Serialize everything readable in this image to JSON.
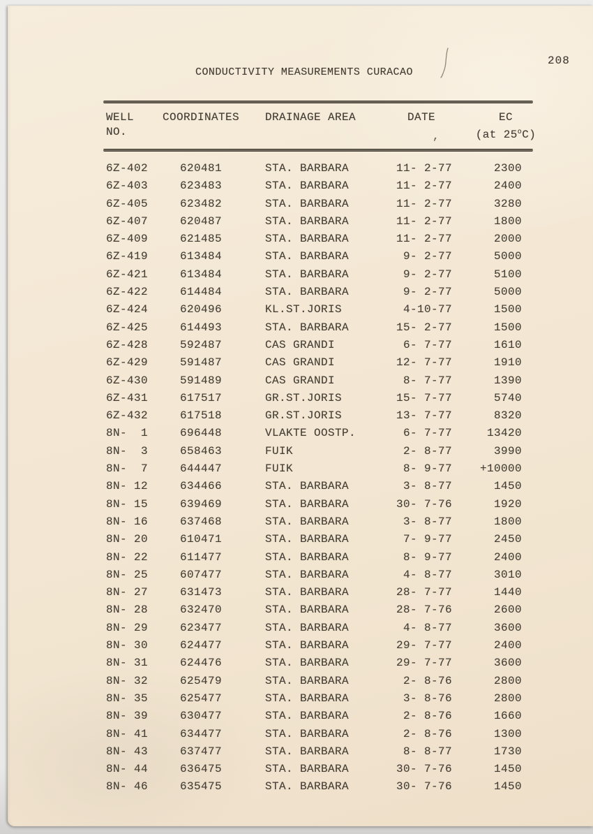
{
  "page": {
    "number": "208",
    "title": "CONDUCTIVITY MEASUREMENTS CURACAO"
  },
  "table": {
    "headers": {
      "well_line1": "WELL",
      "well_line2": "NO.",
      "coordinates": "COORDINATES",
      "drainage": "DRAINAGE AREA",
      "date": "DATE",
      "ec_line1": "EC",
      "ec_line2_pre": "(at 25",
      "ec_line2_sup": "o",
      "ec_line2_post": "C)"
    },
    "rows": [
      {
        "well": "6Z-402",
        "coordinates": "620481",
        "drainage": "STA. BARBARA",
        "date": "11- 2-77",
        "ec": "2300"
      },
      {
        "well": "6Z-403",
        "coordinates": "623483",
        "drainage": "STA. BARBARA",
        "date": "11- 2-77",
        "ec": "2400"
      },
      {
        "well": "6Z-405",
        "coordinates": "623482",
        "drainage": "STA. BARBARA",
        "date": "11- 2-77",
        "ec": "3280"
      },
      {
        "well": "6Z-407",
        "coordinates": "620487",
        "drainage": "STA. BARBARA",
        "date": "11- 2-77",
        "ec": "1800"
      },
      {
        "well": "6Z-409",
        "coordinates": "621485",
        "drainage": "STA. BARBARA",
        "date": "11- 2-77",
        "ec": "2000"
      },
      {
        "well": "6Z-419",
        "coordinates": "613484",
        "drainage": "STA. BARBARA",
        "date": "9- 2-77",
        "ec": "5000"
      },
      {
        "well": "6Z-421",
        "coordinates": "613484",
        "drainage": "STA. BARBARA",
        "date": "9- 2-77",
        "ec": "5100"
      },
      {
        "well": "6Z-422",
        "coordinates": "614484",
        "drainage": "STA. BARBARA",
        "date": "9- 2-77",
        "ec": "5000"
      },
      {
        "well": "6Z-424",
        "coordinates": "620496",
        "drainage": "KL.ST.JORIS",
        "date": "4-10-77",
        "ec": "1500"
      },
      {
        "well": "6Z-425",
        "coordinates": "614493",
        "drainage": "STA. BARBARA",
        "date": "15- 2-77",
        "ec": "1500"
      },
      {
        "well": "6Z-428",
        "coordinates": "592487",
        "drainage": "CAS GRANDI",
        "date": "6- 7-77",
        "ec": "1610"
      },
      {
        "well": "6Z-429",
        "coordinates": "591487",
        "drainage": "CAS GRANDI",
        "date": "12- 7-77",
        "ec": "1910"
      },
      {
        "well": "6Z-430",
        "coordinates": "591489",
        "drainage": "CAS GRANDI",
        "date": "8- 7-77",
        "ec": "1390"
      },
      {
        "well": "6Z-431",
        "coordinates": "617517",
        "drainage": "GR.ST.JORIS",
        "date": "15- 7-77",
        "ec": "5740"
      },
      {
        "well": "6Z-432",
        "coordinates": "617518",
        "drainage": "GR.ST.JORIS",
        "date": "13- 7-77",
        "ec": "8320"
      },
      {
        "well": "8N-  1",
        "coordinates": "696448",
        "drainage": "VLAKTE OOSTP.",
        "date": "6- 7-77",
        "ec": "13420"
      },
      {
        "well": "8N-  3",
        "coordinates": "658463",
        "drainage": "FUIK",
        "date": "2- 8-77",
        "ec": "3990"
      },
      {
        "well": "8N-  7",
        "coordinates": "644447",
        "drainage": "FUIK",
        "date": "8- 9-77",
        "ec": "+10000"
      },
      {
        "well": "8N- 12",
        "coordinates": "634466",
        "drainage": "STA. BARBARA",
        "date": "3- 8-77",
        "ec": "1450"
      },
      {
        "well": "8N- 15",
        "coordinates": "639469",
        "drainage": "STA. BARBARA",
        "date": "30- 7-76",
        "ec": "1920"
      },
      {
        "well": "8N- 16",
        "coordinates": "637468",
        "drainage": "STA. BARBARA",
        "date": "3- 8-77",
        "ec": "1800"
      },
      {
        "well": "8N- 20",
        "coordinates": "610471",
        "drainage": "STA. BARBARA",
        "date": "7- 9-77",
        "ec": "2450"
      },
      {
        "well": "8N- 22",
        "coordinates": "611477",
        "drainage": "STA. BARBARA",
        "date": "8- 9-77",
        "ec": "2400"
      },
      {
        "well": "8N- 25",
        "coordinates": "607477",
        "drainage": "STA. BARBARA",
        "date": "4- 8-77",
        "ec": "3010"
      },
      {
        "well": "8N- 27",
        "coordinates": "631473",
        "drainage": "STA. BARBARA",
        "date": "28- 7-77",
        "ec": "1440"
      },
      {
        "well": "8N- 28",
        "coordinates": "632470",
        "drainage": "STA. BARBARA",
        "date": "28- 7-76",
        "ec": "2600"
      },
      {
        "well": "8N- 29",
        "coordinates": "623477",
        "drainage": "STA. BARBARA",
        "date": "4- 8-77",
        "ec": "3600"
      },
      {
        "well": "8N- 30",
        "coordinates": "624477",
        "drainage": "STA. BARBARA",
        "date": "29- 7-77",
        "ec": "2400"
      },
      {
        "well": "8N- 31",
        "coordinates": "624476",
        "drainage": "STA. BARBARA",
        "date": "29- 7-77",
        "ec": "3600"
      },
      {
        "well": "8N- 32",
        "coordinates": "625479",
        "drainage": "STA. BARBARA",
        "date": "2- 8-76",
        "ec": "2800"
      },
      {
        "well": "8N- 35",
        "coordinates": "625477",
        "drainage": "STA. BARBARA",
        "date": "3- 8-76",
        "ec": "2800"
      },
      {
        "well": "8N- 39",
        "coordinates": "630477",
        "drainage": "STA. BARBARA",
        "date": "2- 8-76",
        "ec": "1660"
      },
      {
        "well": "8N- 41",
        "coordinates": "634477",
        "drainage": "STA. BARBARA",
        "date": "2- 8-76",
        "ec": "1300"
      },
      {
        "well": "8N- 43",
        "coordinates": "637477",
        "drainage": "STA. BARBARA",
        "date": "8- 8-77",
        "ec": "1730"
      },
      {
        "well": "8N- 44",
        "coordinates": "636475",
        "drainage": "STA. BARBARA",
        "date": "30- 7-76",
        "ec": "1450"
      },
      {
        "well": "8N- 46",
        "coordinates": "635475",
        "drainage": "STA. BARBARA",
        "date": "30- 7-76",
        "ec": "1450"
      }
    ]
  },
  "artifacts": {
    "comma_mark": ","
  },
  "colors": {
    "paper": "#f4e8d5",
    "scanner_background": "#e9e9e7",
    "ink": "#423c33",
    "rule": "#3e382f"
  }
}
